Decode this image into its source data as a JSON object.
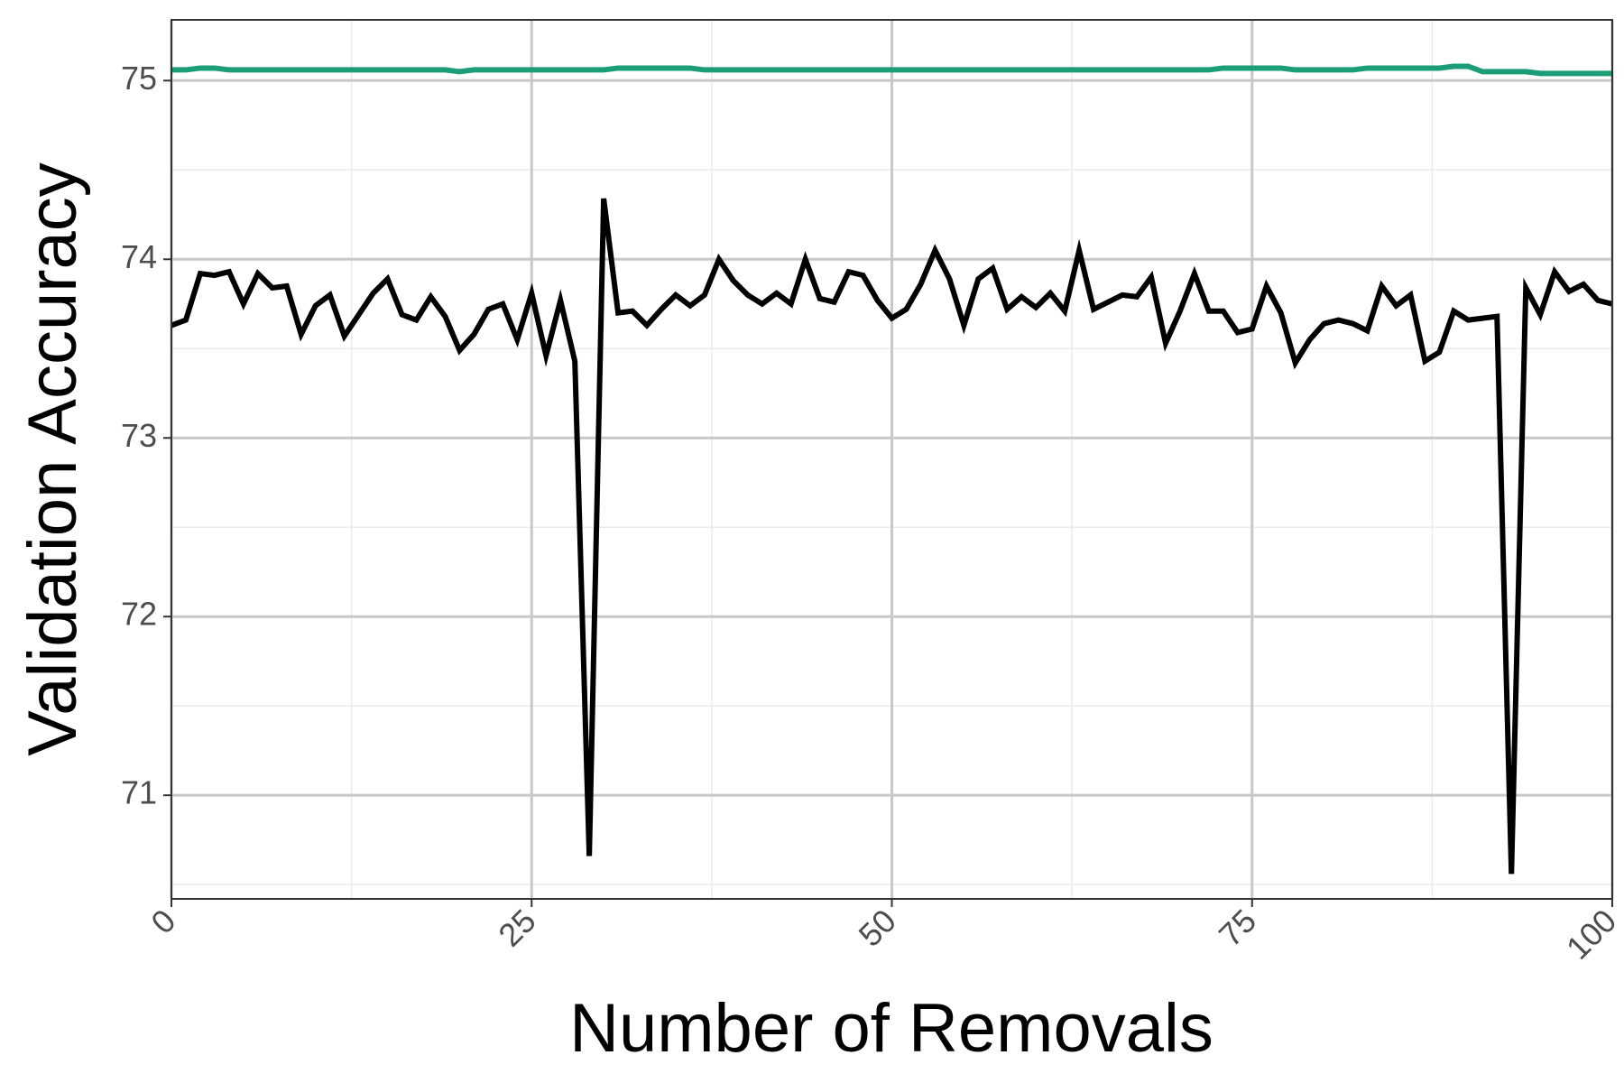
{
  "chart_data": {
    "type": "line",
    "title": "",
    "xlabel": "Number of Removals",
    "ylabel": "Validation Accuracy",
    "xlim": [
      0,
      100
    ],
    "ylim": [
      70.42,
      75.34
    ],
    "x_ticks": [
      0,
      25,
      50,
      75,
      100
    ],
    "x_tick_labels": [
      "0",
      "25",
      "50",
      "75",
      "100"
    ],
    "y_ticks": [
      71,
      72,
      73,
      74,
      75
    ],
    "y_tick_labels": [
      "71",
      "72",
      "73",
      "74",
      "75"
    ],
    "grid": true,
    "legend": "none",
    "colors": {
      "series_green": "#1b9e77",
      "series_black": "#000000",
      "grid_major": "#c8c8c8",
      "grid_minor": "#ebebeb",
      "panel_border": "#333333",
      "tick_label": "#4d4d4d"
    },
    "series": [
      {
        "color": "#1b9e77",
        "values": [
          75.06,
          75.06,
          75.07,
          75.07,
          75.06,
          75.06,
          75.06,
          75.06,
          75.06,
          75.06,
          75.06,
          75.06,
          75.06,
          75.06,
          75.06,
          75.06,
          75.06,
          75.06,
          75.06,
          75.06,
          75.05,
          75.06,
          75.06,
          75.06,
          75.06,
          75.06,
          75.06,
          75.06,
          75.06,
          75.06,
          75.06,
          75.07,
          75.07,
          75.07,
          75.07,
          75.07,
          75.07,
          75.06,
          75.06,
          75.06,
          75.06,
          75.06,
          75.06,
          75.06,
          75.06,
          75.06,
          75.06,
          75.06,
          75.06,
          75.06,
          75.06,
          75.06,
          75.06,
          75.06,
          75.06,
          75.06,
          75.06,
          75.06,
          75.06,
          75.06,
          75.06,
          75.06,
          75.06,
          75.06,
          75.06,
          75.06,
          75.06,
          75.06,
          75.06,
          75.06,
          75.06,
          75.06,
          75.06,
          75.07,
          75.07,
          75.07,
          75.07,
          75.07,
          75.06,
          75.06,
          75.06,
          75.06,
          75.06,
          75.07,
          75.07,
          75.07,
          75.07,
          75.07,
          75.07,
          75.08,
          75.08,
          75.05,
          75.05,
          75.05,
          75.05,
          75.04,
          75.04,
          75.04,
          75.04,
          75.04,
          75.04
        ]
      },
      {
        "color": "#000000",
        "values": [
          73.63,
          73.66,
          73.92,
          73.91,
          73.93,
          73.75,
          73.92,
          73.84,
          73.85,
          73.58,
          73.74,
          73.8,
          73.57,
          73.69,
          73.81,
          73.89,
          73.69,
          73.66,
          73.79,
          73.68,
          73.49,
          73.58,
          73.72,
          73.75,
          73.55,
          73.81,
          73.46,
          73.77,
          73.43,
          70.66,
          74.34,
          73.7,
          73.71,
          73.63,
          73.72,
          73.8,
          73.74,
          73.8,
          74.0,
          73.88,
          73.8,
          73.75,
          73.81,
          73.75,
          74.0,
          73.78,
          73.76,
          73.93,
          73.91,
          73.77,
          73.67,
          73.72,
          73.86,
          74.05,
          73.89,
          73.63,
          73.89,
          73.95,
          73.72,
          73.79,
          73.73,
          73.81,
          73.71,
          74.05,
          73.72,
          73.76,
          73.8,
          73.79,
          73.9,
          73.53,
          73.71,
          73.92,
          73.71,
          73.71,
          73.59,
          73.61,
          73.85,
          73.7,
          73.42,
          73.55,
          73.64,
          73.66,
          73.64,
          73.6,
          73.85,
          73.74,
          73.8,
          73.43,
          73.48,
          73.71,
          73.66,
          73.67,
          73.68,
          70.56,
          73.84,
          73.69,
          73.93,
          73.82,
          73.86,
          73.77,
          73.75
        ]
      }
    ]
  }
}
